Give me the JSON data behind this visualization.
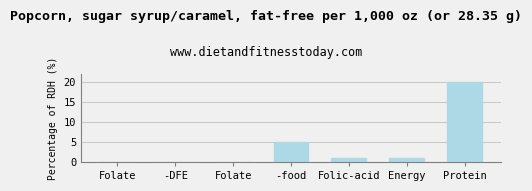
{
  "title": "Popcorn, sugar syrup/caramel, fat-free per 1,000 oz (or 28.35 g)",
  "subtitle": "www.dietandfitnesstoday.com",
  "categories": [
    "Folate",
    "-DFE",
    "Folate",
    "-food",
    "Folic-acid",
    "Energy",
    "Protein"
  ],
  "values": [
    0,
    0,
    0,
    5,
    1,
    1,
    20
  ],
  "bar_color": "#add8e6",
  "ylabel": "Percentage of RDH (%)",
  "ylim": [
    0,
    22
  ],
  "yticks": [
    0,
    5,
    10,
    15,
    20
  ],
  "background_color": "#f0f0f0",
  "border_color": "#808080",
  "title_fontsize": 9.5,
  "subtitle_fontsize": 8.5,
  "ylabel_fontsize": 7,
  "tick_fontsize": 7.5
}
